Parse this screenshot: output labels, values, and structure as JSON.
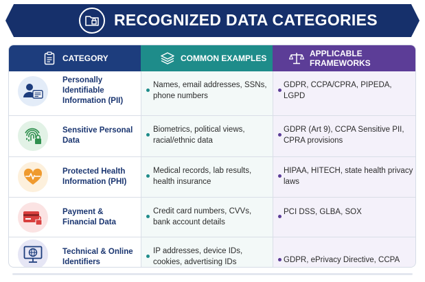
{
  "title": "RECOGNIZED DATA CATEGORIES",
  "headers": {
    "category": "CATEGORY",
    "examples": "COMMON EXAMPLES",
    "frameworks": "APPLICABLE FRAMEWORKS"
  },
  "colors": {
    "navy": "#16306b",
    "teal": "#1e8c8a",
    "purple": "#5c3d97"
  },
  "rows": [
    {
      "icon": "person-id-card-icon",
      "category": "Personally Identifiable Information (PII)",
      "examples": "Names, email addresses, SSNs, phone numbers",
      "frameworks": "GDPR, CCPA/CPRA, PIPEDA, LGPD"
    },
    {
      "icon": "fingerprint-lock-icon",
      "category": "Sensitive Personal Data",
      "examples": "Biometrics, political views, racial/ethnic data",
      "frameworks": "GDPR (Art 9), CCPA Sensitive PII, CPRA provisions"
    },
    {
      "icon": "heart-pulse-icon",
      "category": "Protected Health Information (PHI)",
      "examples": "Medical records, lab results, health insurance",
      "frameworks": "HIPAA, HITECH, state health privacy laws"
    },
    {
      "icon": "credit-card-lock-icon",
      "category": "Payment & Financial Data",
      "examples": "Credit card numbers, CVVs, bank account details",
      "frameworks": "PCI DSS, GLBA, SOX"
    },
    {
      "icon": "monitor-globe-icon",
      "category": "Technical & Online Identifiers",
      "examples": "IP addresses, device IDs, cookies, advertising IDs",
      "frameworks": "GDPR, ePrivacy Directive, CCPA"
    }
  ]
}
